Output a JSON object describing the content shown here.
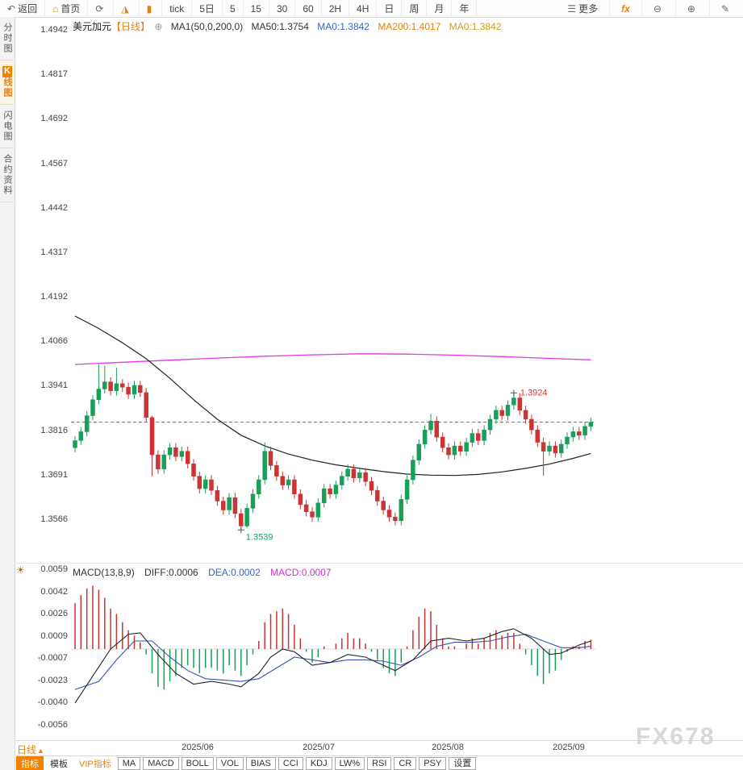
{
  "toolbar": {
    "back": "返回",
    "home": "首页",
    "periods": [
      "tick",
      "5日",
      "5",
      "15",
      "30",
      "60",
      "2H",
      "4H",
      "日",
      "周",
      "月",
      "年"
    ],
    "more": "更多",
    "fx": "fx"
  },
  "icons": {
    "back": "↶",
    "home": "⌂",
    "refresh": "⟳",
    "area_chart": "◮",
    "bar_chart": "▮",
    "more": "☰",
    "zoom_out": "⊖",
    "zoom_in": "⊕",
    "pen": "✎",
    "expand": "⊕",
    "sun": "☀",
    "up_triangle": "▲"
  },
  "sidebar": {
    "items": [
      {
        "label": "分时图",
        "active": false
      },
      {
        "label": "K线图",
        "active": true
      },
      {
        "label": "闪电图",
        "active": false
      },
      {
        "label": "合约资料",
        "active": false
      }
    ]
  },
  "chart_header": {
    "symbol": "美元加元",
    "period_tag": "【日线】",
    "ma_settings": "MA1(50,0,200,0)",
    "ma50_label": "MA50:1.3754",
    "ma0_blue": "MA0:1.3842",
    "ma200_label": "MA200:1.4017",
    "ma0_gold": "MA0:1.3842"
  },
  "macd_header": {
    "title": "MACD(13,8,9)",
    "diff": "DIFF:0.0006",
    "dea": "DEA:0.0002",
    "macd": "MACD:0.0007"
  },
  "axes": {
    "main": [
      "1.4942",
      "1.4817",
      "1.4692",
      "1.4567",
      "1.4442",
      "1.4317",
      "1.4192",
      "1.4066",
      "1.3941",
      "1.3816",
      "1.3691",
      "1.3566"
    ],
    "macd": [
      "0.0059",
      "0.0042",
      "0.0026",
      "0.0009",
      "-0.0007",
      "-0.0023",
      "-0.0040",
      "-0.0056"
    ],
    "x": [
      "2025/06",
      "2025/07",
      "2025/08",
      "2025/09"
    ]
  },
  "bottom": {
    "period_label": "日线",
    "tabs": [
      "指标",
      "模板",
      "VIP指标"
    ],
    "indicators": [
      "MA",
      "MACD",
      "BOLL",
      "VOL",
      "BIAS",
      "CCI",
      "KDJ",
      "LW%",
      "RSI",
      "CR",
      "PSY",
      "设置"
    ]
  },
  "watermark": "FX678",
  "colors": {
    "up": "#18a058",
    "down": "#cc3333",
    "ma50": "#222222",
    "ma200": "#e33ae3",
    "dash": "#2aa184",
    "diff": "#222233",
    "dea": "#3355aa",
    "high_label": "#e03131",
    "low_label": "#18a058",
    "marker": "#555555",
    "zero": "#bbbbbb"
  },
  "chart_data": {
    "type": "candlestick",
    "title": "美元加元 日线 (USD/CAD Daily)",
    "x_labels": [
      "2025/06",
      "2025/07",
      "2025/08",
      "2025/09"
    ],
    "price_range": [
      1.34467,
      1.496
    ],
    "last_price": 1.3842,
    "candles": [
      [
        1.377,
        1.3803,
        1.3757,
        1.379
      ],
      [
        1.379,
        1.3828,
        1.3777,
        1.3815
      ],
      [
        1.3815,
        1.3873,
        1.3802,
        1.386
      ],
      [
        1.386,
        1.3918,
        1.3847,
        1.3905
      ],
      [
        1.3905,
        1.4005,
        1.3892,
        1.3935
      ],
      [
        1.3935,
        1.4,
        1.3922,
        1.3955
      ],
      [
        1.3955,
        1.3968,
        1.3917,
        1.393
      ],
      [
        1.393,
        1.3995,
        1.3917,
        1.395
      ],
      [
        1.395,
        1.3963,
        1.3927,
        1.394
      ],
      [
        1.394,
        1.3953,
        1.3907,
        1.392
      ],
      [
        1.392,
        1.3958,
        1.3907,
        1.3945
      ],
      [
        1.3945,
        1.3958,
        1.3912,
        1.3925
      ],
      [
        1.3925,
        1.3938,
        1.3842,
        1.3855
      ],
      [
        1.3855,
        1.386,
        1.369,
        1.375
      ],
      [
        1.375,
        1.3763,
        1.3697,
        1.371
      ],
      [
        1.371,
        1.3763,
        1.3697,
        1.375
      ],
      [
        1.375,
        1.3783,
        1.3737,
        1.377
      ],
      [
        1.377,
        1.3783,
        1.3732,
        1.3745
      ],
      [
        1.3745,
        1.3773,
        1.3732,
        1.376
      ],
      [
        1.376,
        1.3773,
        1.3712,
        1.3725
      ],
      [
        1.3725,
        1.3738,
        1.3677,
        1.369
      ],
      [
        1.369,
        1.3703,
        1.3642,
        1.3655
      ],
      [
        1.3655,
        1.3693,
        1.3642,
        1.368
      ],
      [
        1.368,
        1.3693,
        1.3637,
        1.365
      ],
      [
        1.365,
        1.3663,
        1.3607,
        1.362
      ],
      [
        1.362,
        1.3633,
        1.3582,
        1.3595
      ],
      [
        1.3595,
        1.3643,
        1.3582,
        1.363
      ],
      [
        1.363,
        1.3643,
        1.3572,
        1.3585
      ],
      [
        1.3585,
        1.3598,
        1.3539,
        1.355
      ],
      [
        1.355,
        1.3613,
        1.3545,
        1.36
      ],
      [
        1.36,
        1.3653,
        1.3587,
        1.364
      ],
      [
        1.364,
        1.3693,
        1.3627,
        1.368
      ],
      [
        1.368,
        1.3785,
        1.3667,
        1.376
      ],
      [
        1.376,
        1.3773,
        1.3707,
        1.372
      ],
      [
        1.372,
        1.3733,
        1.3677,
        1.369
      ],
      [
        1.369,
        1.3703,
        1.3652,
        1.3665
      ],
      [
        1.3665,
        1.3693,
        1.3652,
        1.368
      ],
      [
        1.368,
        1.3693,
        1.3627,
        1.364
      ],
      [
        1.364,
        1.3653,
        1.3597,
        1.361
      ],
      [
        1.361,
        1.3623,
        1.3577,
        1.359
      ],
      [
        1.359,
        1.3603,
        1.3562,
        1.3575
      ],
      [
        1.3575,
        1.3628,
        1.3562,
        1.3615
      ],
      [
        1.3615,
        1.3668,
        1.3602,
        1.3655
      ],
      [
        1.3655,
        1.3668,
        1.3627,
        1.364
      ],
      [
        1.364,
        1.3678,
        1.3627,
        1.3665
      ],
      [
        1.3665,
        1.3703,
        1.3652,
        1.369
      ],
      [
        1.369,
        1.3723,
        1.3677,
        1.371
      ],
      [
        1.371,
        1.3723,
        1.3672,
        1.3685
      ],
      [
        1.3685,
        1.3713,
        1.3672,
        1.37
      ],
      [
        1.37,
        1.3713,
        1.3662,
        1.3675
      ],
      [
        1.3675,
        1.3688,
        1.3637,
        1.365
      ],
      [
        1.365,
        1.3663,
        1.3607,
        1.362
      ],
      [
        1.362,
        1.3633,
        1.3582,
        1.3595
      ],
      [
        1.3595,
        1.3608,
        1.3562,
        1.3575
      ],
      [
        1.3575,
        1.3588,
        1.3552,
        1.3565
      ],
      [
        1.3565,
        1.3638,
        1.3552,
        1.3625
      ],
      [
        1.3625,
        1.3693,
        1.3612,
        1.368
      ],
      [
        1.368,
        1.3748,
        1.3667,
        1.3735
      ],
      [
        1.3735,
        1.3793,
        1.3722,
        1.378
      ],
      [
        1.378,
        1.3833,
        1.3767,
        1.382
      ],
      [
        1.382,
        1.3865,
        1.3807,
        1.3845
      ],
      [
        1.3845,
        1.3858,
        1.3787,
        1.38
      ],
      [
        1.38,
        1.3813,
        1.3757,
        1.377
      ],
      [
        1.377,
        1.3783,
        1.3737,
        1.375
      ],
      [
        1.375,
        1.3788,
        1.3737,
        1.3775
      ],
      [
        1.3775,
        1.3788,
        1.3747,
        1.376
      ],
      [
        1.376,
        1.3798,
        1.3747,
        1.3785
      ],
      [
        1.3785,
        1.3823,
        1.3772,
        1.381
      ],
      [
        1.381,
        1.3823,
        1.3777,
        1.379
      ],
      [
        1.379,
        1.3833,
        1.3777,
        1.382
      ],
      [
        1.382,
        1.3863,
        1.3807,
        1.385
      ],
      [
        1.385,
        1.3888,
        1.3837,
        1.3875
      ],
      [
        1.3875,
        1.3888,
        1.3847,
        1.386
      ],
      [
        1.386,
        1.3903,
        1.3847,
        1.389
      ],
      [
        1.389,
        1.3924,
        1.3877,
        1.391
      ],
      [
        1.391,
        1.3923,
        1.3862,
        1.3875
      ],
      [
        1.3875,
        1.3888,
        1.3837,
        1.385
      ],
      [
        1.385,
        1.3863,
        1.3807,
        1.382
      ],
      [
        1.382,
        1.3833,
        1.3772,
        1.3785
      ],
      [
        1.3785,
        1.3798,
        1.3692,
        1.376
      ],
      [
        1.376,
        1.3788,
        1.3747,
        1.3775
      ],
      [
        1.3775,
        1.3788,
        1.3742,
        1.3755
      ],
      [
        1.3755,
        1.3793,
        1.3742,
        1.378
      ],
      [
        1.378,
        1.3813,
        1.3767,
        1.38
      ],
      [
        1.38,
        1.3828,
        1.3787,
        1.3815
      ],
      [
        1.3815,
        1.3828,
        1.3792,
        1.3805
      ],
      [
        1.3805,
        1.3843,
        1.3792,
        1.383
      ],
      [
        1.383,
        1.3855,
        1.3817,
        1.3842
      ]
    ],
    "ma50": [
      [
        0,
        1.414
      ],
      [
        4,
        1.4105
      ],
      [
        8,
        1.4065
      ],
      [
        12,
        1.402
      ],
      [
        16,
        1.3965
      ],
      [
        20,
        1.3905
      ],
      [
        24,
        1.385
      ],
      [
        28,
        1.3805
      ],
      [
        32,
        1.3775
      ],
      [
        36,
        1.3752
      ],
      [
        40,
        1.3735
      ],
      [
        44,
        1.3722
      ],
      [
        48,
        1.3712
      ],
      [
        52,
        1.3703
      ],
      [
        56,
        1.3696
      ],
      [
        60,
        1.3693
      ],
      [
        64,
        1.3692
      ],
      [
        68,
        1.3695
      ],
      [
        72,
        1.3702
      ],
      [
        76,
        1.3712
      ],
      [
        80,
        1.3724
      ],
      [
        84,
        1.374
      ],
      [
        87,
        1.3754
      ]
    ],
    "ma200": [
      [
        0,
        1.4004
      ],
      [
        8,
        1.401
      ],
      [
        16,
        1.4016
      ],
      [
        24,
        1.4022
      ],
      [
        32,
        1.4027
      ],
      [
        40,
        1.4031
      ],
      [
        48,
        1.4034
      ],
      [
        56,
        1.4033
      ],
      [
        64,
        1.403
      ],
      [
        72,
        1.4026
      ],
      [
        80,
        1.4021
      ],
      [
        87,
        1.4017
      ]
    ],
    "annotations": {
      "high": {
        "index": 74,
        "price": 1.3924,
        "label": "1.3924"
      },
      "low": {
        "index": 28,
        "price": 1.3539,
        "label": "1.3539"
      }
    },
    "macd": {
      "params": "13,8,9",
      "value_range": [
        -0.00658,
        0.00628
      ],
      "hist": [
        0.0034,
        0.004,
        0.0045,
        0.0047,
        0.0044,
        0.0038,
        0.003,
        0.0026,
        0.002,
        0.0014,
        0.001,
        0.0005,
        -0.0004,
        -0.0018,
        -0.0028,
        -0.003,
        -0.0024,
        -0.002,
        -0.0014,
        -0.0012,
        -0.0014,
        -0.0018,
        -0.0014,
        -0.0014,
        -0.0016,
        -0.0018,
        -0.0012,
        -0.0016,
        -0.002,
        -0.0012,
        -0.0004,
        0.0006,
        0.002,
        0.0026,
        0.0028,
        0.003,
        0.0026,
        0.0018,
        0.0008,
        -0.0002,
        -0.001,
        -0.0006,
        0.0002,
        0.0,
        0.0004,
        0.0008,
        0.0012,
        0.0008,
        0.0008,
        0.0004,
        -0.0002,
        -0.0008,
        -0.0014,
        -0.0018,
        -0.002,
        -0.001,
        0.0002,
        0.0014,
        0.0024,
        0.003,
        0.0028,
        0.0018,
        0.0008,
        0.0002,
        0.0002,
        0.0,
        0.0004,
        0.0008,
        0.0004,
        0.0008,
        0.0012,
        0.0014,
        0.001,
        0.0012,
        0.0012,
        0.0004,
        -0.0004,
        -0.0012,
        -0.002,
        -0.0026,
        -0.0018,
        -0.0016,
        -0.0008,
        -0.0002,
        0.0002,
        0.0002,
        0.0006,
        0.0007
      ],
      "diff_points": [
        [
          0,
          -0.004
        ],
        [
          3,
          -0.002
        ],
        [
          6,
          0.0
        ],
        [
          9,
          0.0011
        ],
        [
          11,
          0.0012
        ],
        [
          14,
          -0.0004
        ],
        [
          17,
          -0.0018
        ],
        [
          20,
          -0.0026
        ],
        [
          23,
          -0.0024
        ],
        [
          26,
          -0.0026
        ],
        [
          28,
          -0.0028
        ],
        [
          31,
          -0.0018
        ],
        [
          33,
          -0.0006
        ],
        [
          35,
          0.0
        ],
        [
          37,
          -0.0002
        ],
        [
          40,
          -0.0012
        ],
        [
          43,
          -0.001
        ],
        [
          46,
          -0.0004
        ],
        [
          49,
          -0.0006
        ],
        [
          52,
          -0.0012
        ],
        [
          54,
          -0.0016
        ],
        [
          57,
          -0.0008
        ],
        [
          60,
          0.0006
        ],
        [
          63,
          0.0008
        ],
        [
          66,
          0.0006
        ],
        [
          69,
          0.0008
        ],
        [
          72,
          0.0013
        ],
        [
          74,
          0.0015
        ],
        [
          77,
          0.0008
        ],
        [
          80,
          -0.0004
        ],
        [
          82,
          -0.0003
        ],
        [
          85,
          0.0003
        ],
        [
          87,
          0.0006
        ]
      ],
      "dea_points": [
        [
          0,
          -0.003
        ],
        [
          4,
          -0.0024
        ],
        [
          7,
          -0.0008
        ],
        [
          10,
          0.0006
        ],
        [
          13,
          0.0006
        ],
        [
          16,
          -0.0006
        ],
        [
          19,
          -0.0016
        ],
        [
          22,
          -0.0022
        ],
        [
          25,
          -0.0023
        ],
        [
          28,
          -0.0024
        ],
        [
          31,
          -0.0022
        ],
        [
          34,
          -0.0014
        ],
        [
          37,
          -0.0006
        ],
        [
          40,
          -0.0008
        ],
        [
          43,
          -0.001
        ],
        [
          46,
          -0.0008
        ],
        [
          49,
          -0.0008
        ],
        [
          52,
          -0.0009
        ],
        [
          55,
          -0.0012
        ],
        [
          58,
          -0.0006
        ],
        [
          61,
          0.0002
        ],
        [
          64,
          0.0005
        ],
        [
          67,
          0.0005
        ],
        [
          70,
          0.0006
        ],
        [
          73,
          0.0009
        ],
        [
          76,
          0.0011
        ],
        [
          79,
          0.0006
        ],
        [
          82,
          0.0001
        ],
        [
          85,
          0.0001
        ],
        [
          87,
          0.0002
        ]
      ]
    }
  }
}
